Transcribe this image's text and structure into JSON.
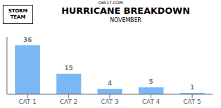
{
  "chart_data": {
    "type": "bar",
    "title": "HURRICANE BREAKDOWN",
    "subtitle": "NOVEMBER",
    "annotations": [
      "STORM\nTEAM",
      "CBS17.COM"
    ],
    "categories": [
      "CAT 1",
      "CAT 2",
      "CAT 3",
      "CAT 4",
      "CAT 5"
    ],
    "values": [
      36,
      15,
      4,
      5,
      1
    ],
    "color": "#7ab8f5",
    "ylim": [
      0,
      42
    ],
    "data_labels": true,
    "tick_labels": "x",
    "grid": false
  }
}
